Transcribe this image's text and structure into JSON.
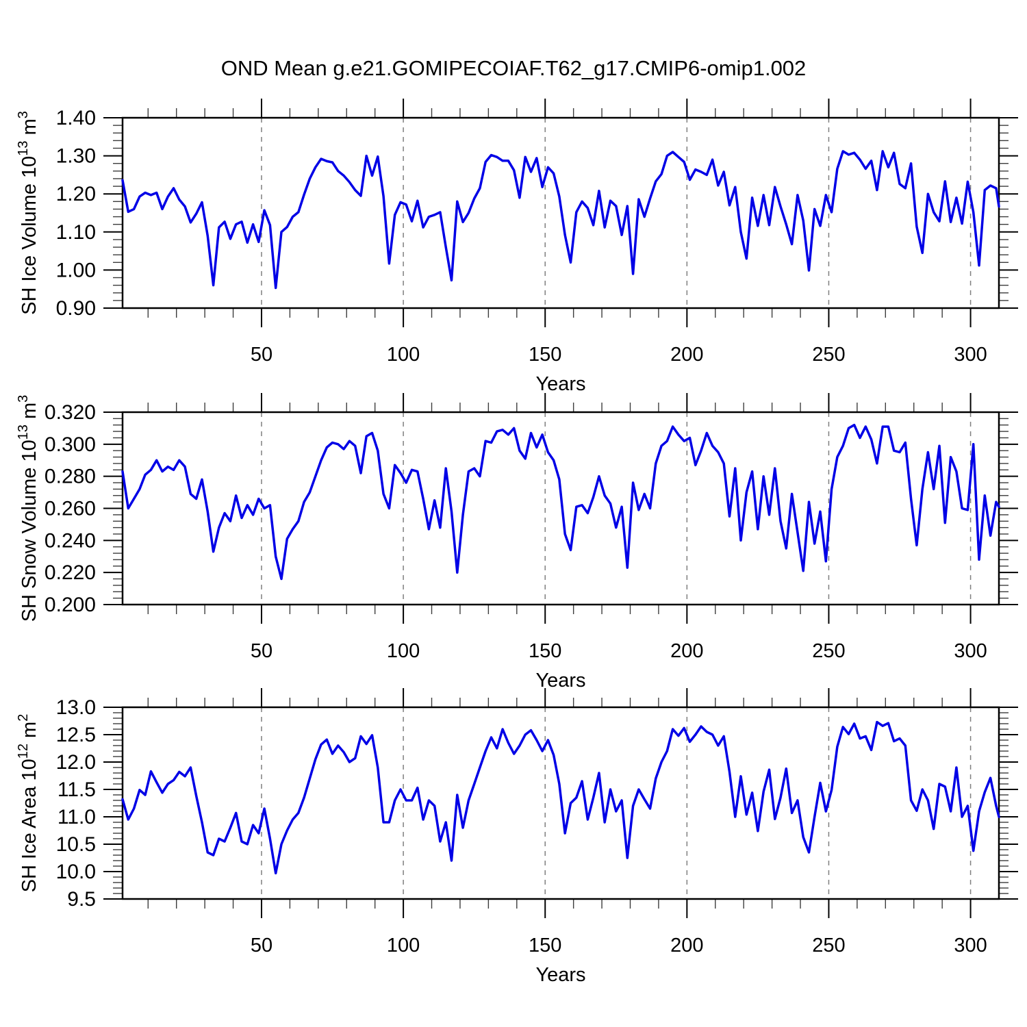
{
  "title": "OND Mean g.e21.GOMIPECOIAF.T62_g17.CMIP6-omip1.002",
  "colors": {
    "line": "#0000e6",
    "grid": "#7f7f7f",
    "frame": "#000000",
    "minor_tick": "#3c3c3c",
    "text": "#000000",
    "background": "#ffffff"
  },
  "chart_data": {
    "type": "line",
    "title": "OND Mean g.e21.GOMIPECOIAF.T62_g17.CMIP6-omip1.002",
    "xlabel": "Years",
    "legend": "none",
    "grid": "vertical-dashed-at-major-xticks",
    "xlim": [
      1,
      310
    ],
    "xticks": [
      50,
      100,
      150,
      200,
      250,
      300
    ],
    "xtick_minor_step": 10,
    "x_years": [
      1,
      3,
      5,
      7,
      9,
      11,
      13,
      15,
      17,
      19,
      21,
      23,
      25,
      27,
      29,
      31,
      33,
      35,
      37,
      39,
      41,
      43,
      45,
      47,
      49,
      51,
      53,
      55,
      57,
      59,
      61,
      63,
      65,
      67,
      69,
      71,
      73,
      75,
      77,
      79,
      81,
      83,
      85,
      87,
      89,
      91,
      93,
      95,
      97,
      99,
      101,
      103,
      105,
      107,
      109,
      111,
      113,
      115,
      117,
      119,
      121,
      123,
      125,
      127,
      129,
      131,
      133,
      135,
      137,
      139,
      141,
      143,
      145,
      147,
      149,
      151,
      153,
      155,
      157,
      159,
      161,
      163,
      165,
      167,
      169,
      171,
      173,
      175,
      177,
      179,
      181,
      183,
      185,
      187,
      189,
      191,
      193,
      195,
      197,
      199,
      201,
      203,
      205,
      207,
      209,
      211,
      213,
      215,
      217,
      219,
      221,
      223,
      225,
      227,
      229,
      231,
      233,
      235,
      237,
      239,
      241,
      243,
      245,
      247,
      249,
      251,
      253,
      255,
      257,
      259,
      261,
      263,
      265,
      267,
      269,
      271,
      273,
      275,
      277,
      279,
      281,
      283,
      285,
      287,
      289,
      291,
      293,
      295,
      297,
      299,
      301,
      303,
      305,
      307,
      309,
      310
    ],
    "panels": [
      {
        "id": "ice-volume",
        "ylabel_plain": "SH Ice Volume 10^13 m^3",
        "ylabel_parts": [
          {
            "t": "SH Ice Volume 10"
          },
          {
            "t": "13",
            "sup": true
          },
          {
            "t": " m"
          },
          {
            "t": "3",
            "sup": true
          }
        ],
        "ylim": [
          0.9,
          1.4
        ],
        "ytick_step": 0.1,
        "ytick_minor_step": 0.02,
        "ytick_decimals": 2,
        "values": [
          1.236,
          1.153,
          1.16,
          1.193,
          1.203,
          1.197,
          1.203,
          1.16,
          1.193,
          1.215,
          1.185,
          1.167,
          1.125,
          1.148,
          1.178,
          1.09,
          0.96,
          1.112,
          1.127,
          1.082,
          1.12,
          1.127,
          1.072,
          1.12,
          1.074,
          1.157,
          1.118,
          0.953,
          1.1,
          1.113,
          1.14,
          1.152,
          1.198,
          1.24,
          1.27,
          1.292,
          1.286,
          1.283,
          1.26,
          1.248,
          1.231,
          1.21,
          1.195,
          1.3,
          1.248,
          1.298,
          1.194,
          1.017,
          1.145,
          1.178,
          1.172,
          1.128,
          1.182,
          1.112,
          1.14,
          1.145,
          1.152,
          1.06,
          0.973,
          1.18,
          1.126,
          1.15,
          1.188,
          1.215,
          1.284,
          1.302,
          1.297,
          1.287,
          1.287,
          1.262,
          1.19,
          1.297,
          1.258,
          1.294,
          1.218,
          1.27,
          1.254,
          1.193,
          1.092,
          1.02,
          1.152,
          1.18,
          1.163,
          1.118,
          1.208,
          1.112,
          1.182,
          1.168,
          1.092,
          1.168,
          0.99,
          1.186,
          1.14,
          1.188,
          1.233,
          1.252,
          1.3,
          1.31,
          1.297,
          1.284,
          1.237,
          1.264,
          1.258,
          1.25,
          1.29,
          1.222,
          1.258,
          1.17,
          1.218,
          1.1,
          1.03,
          1.19,
          1.116,
          1.197,
          1.118,
          1.218,
          1.167,
          1.12,
          1.068,
          1.197,
          1.13,
          0.999,
          1.16,
          1.116,
          1.197,
          1.152,
          1.266,
          1.312,
          1.303,
          1.308,
          1.29,
          1.266,
          1.287,
          1.21,
          1.312,
          1.27,
          1.308,
          1.226,
          1.215,
          1.28,
          1.114,
          1.045,
          1.2,
          1.152,
          1.128,
          1.233,
          1.126,
          1.19,
          1.122,
          1.232,
          1.152,
          1.012,
          1.21,
          1.222,
          1.215,
          1.167
        ]
      },
      {
        "id": "snow-volume",
        "ylabel_plain": "SH Snow Volume 10^13 m^3",
        "ylabel_parts": [
          {
            "t": "SH Snow Volume 10"
          },
          {
            "t": "13",
            "sup": true
          },
          {
            "t": " m"
          },
          {
            "t": "3",
            "sup": true
          }
        ],
        "ylim": [
          0.2,
          0.32
        ],
        "ytick_step": 0.02,
        "ytick_minor_step": 0.004,
        "ytick_decimals": 3,
        "values": [
          0.283,
          0.26,
          0.266,
          0.272,
          0.281,
          0.284,
          0.29,
          0.283,
          0.286,
          0.284,
          0.29,
          0.286,
          0.269,
          0.266,
          0.278,
          0.258,
          0.233,
          0.248,
          0.257,
          0.252,
          0.268,
          0.254,
          0.262,
          0.256,
          0.266,
          0.26,
          0.262,
          0.23,
          0.216,
          0.241,
          0.247,
          0.252,
          0.264,
          0.27,
          0.28,
          0.29,
          0.298,
          0.301,
          0.3,
          0.297,
          0.302,
          0.299,
          0.282,
          0.305,
          0.307,
          0.296,
          0.269,
          0.26,
          0.287,
          0.282,
          0.276,
          0.284,
          0.283,
          0.266,
          0.247,
          0.265,
          0.248,
          0.285,
          0.258,
          0.22,
          0.256,
          0.283,
          0.285,
          0.28,
          0.302,
          0.301,
          0.308,
          0.309,
          0.306,
          0.31,
          0.296,
          0.291,
          0.307,
          0.298,
          0.306,
          0.295,
          0.29,
          0.278,
          0.244,
          0.234,
          0.261,
          0.262,
          0.257,
          0.267,
          0.28,
          0.268,
          0.263,
          0.248,
          0.261,
          0.223,
          0.276,
          0.259,
          0.269,
          0.26,
          0.288,
          0.299,
          0.302,
          0.311,
          0.306,
          0.302,
          0.304,
          0.287,
          0.296,
          0.307,
          0.299,
          0.295,
          0.288,
          0.255,
          0.285,
          0.24,
          0.27,
          0.283,
          0.247,
          0.28,
          0.256,
          0.285,
          0.252,
          0.235,
          0.269,
          0.245,
          0.221,
          0.264,
          0.238,
          0.258,
          0.227,
          0.272,
          0.292,
          0.299,
          0.31,
          0.312,
          0.304,
          0.311,
          0.303,
          0.288,
          0.311,
          0.311,
          0.296,
          0.295,
          0.301,
          0.266,
          0.237,
          0.272,
          0.295,
          0.272,
          0.299,
          0.251,
          0.292,
          0.283,
          0.26,
          0.259,
          0.3,
          0.228,
          0.268,
          0.243,
          0.264,
          0.261
        ]
      },
      {
        "id": "ice-area",
        "ylabel_plain": "SH Ice Area 10^12 m^2",
        "ylabel_parts": [
          {
            "t": "SH Ice Area 10"
          },
          {
            "t": "12",
            "sup": true
          },
          {
            "t": " m"
          },
          {
            "t": "2",
            "sup": true
          }
        ],
        "ylim": [
          9.5,
          13.0
        ],
        "ytick_step": 0.5,
        "ytick_minor_step": 0.1,
        "ytick_decimals": 1,
        "values": [
          11.32,
          10.95,
          11.15,
          11.49,
          11.4,
          11.83,
          11.63,
          11.44,
          11.6,
          11.67,
          11.82,
          11.74,
          11.9,
          11.38,
          10.9,
          10.35,
          10.3,
          10.6,
          10.55,
          10.8,
          11.07,
          10.55,
          10.5,
          10.85,
          10.7,
          11.15,
          10.6,
          9.97,
          10.5,
          10.75,
          10.95,
          11.07,
          11.35,
          11.7,
          12.05,
          12.32,
          12.41,
          12.15,
          12.3,
          12.18,
          12.0,
          12.07,
          12.47,
          12.33,
          12.49,
          11.9,
          10.9,
          10.9,
          11.3,
          11.5,
          11.3,
          11.3,
          11.53,
          10.95,
          11.3,
          11.2,
          10.55,
          10.9,
          10.2,
          11.4,
          10.8,
          11.3,
          11.6,
          11.9,
          12.2,
          12.45,
          12.25,
          12.6,
          12.35,
          12.15,
          12.3,
          12.5,
          12.58,
          12.4,
          12.2,
          12.4,
          12.13,
          11.6,
          10.7,
          11.25,
          11.35,
          11.65,
          10.95,
          11.35,
          11.8,
          10.9,
          11.5,
          11.1,
          11.3,
          10.25,
          11.2,
          11.5,
          11.32,
          11.15,
          11.7,
          12.0,
          12.2,
          12.6,
          12.48,
          12.62,
          12.37,
          12.5,
          12.65,
          12.55,
          12.5,
          12.3,
          12.47,
          11.82,
          11.0,
          11.74,
          11.04,
          11.44,
          10.74,
          11.46,
          11.86,
          10.96,
          11.35,
          11.88,
          11.07,
          11.3,
          10.63,
          10.35,
          11.0,
          11.62,
          11.1,
          11.49,
          12.28,
          12.64,
          12.51,
          12.7,
          12.43,
          12.47,
          12.22,
          12.73,
          12.66,
          12.71,
          12.38,
          12.43,
          12.3,
          11.3,
          11.11,
          11.5,
          11.3,
          10.78,
          11.6,
          11.55,
          11.1,
          11.9,
          11.0,
          11.2,
          10.38,
          11.1,
          11.45,
          11.71,
          11.2,
          11.0
        ]
      }
    ]
  }
}
